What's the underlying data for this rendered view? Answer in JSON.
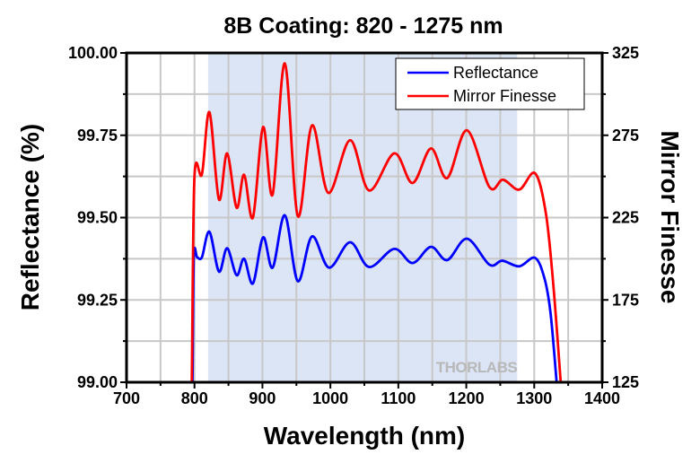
{
  "chart_data": {
    "type": "line",
    "title": "8B Coating: 820 - 1275 nm",
    "xlabel": "Wavelength (nm)",
    "ylabel": "Reflectance (%)",
    "y2label": "Mirror Finesse",
    "xlim": [
      700,
      1400
    ],
    "ylim": [
      99.0,
      100.0
    ],
    "y2lim": [
      125,
      325
    ],
    "xticks": [
      "700",
      "800",
      "900",
      "1000",
      "1100",
      "1200",
      "1300",
      "1400"
    ],
    "yticks": [
      "99.00",
      "99.25",
      "99.50",
      "99.75",
      "100.00"
    ],
    "y2ticks": [
      "125",
      "175",
      "225",
      "275",
      "325"
    ],
    "grid": true,
    "legend_position": "top-right",
    "shaded_band": [
      820,
      1275
    ],
    "shaded_color": "#dce5f5",
    "watermark": "THORLABS",
    "series": [
      {
        "name": "Reflectance",
        "axis": "left",
        "color": "#0000ff",
        "x": [
          795,
          797,
          799,
          804,
          811,
          822,
          836,
          848,
          862,
          873,
          886,
          901,
          915,
          933,
          952,
          973,
          998,
          1029,
          1057,
          1094,
          1121,
          1148,
          1172,
          1201,
          1234,
          1253,
          1278,
          1301,
          1315,
          1324,
          1333
        ],
        "y": [
          98.95,
          99.0,
          99.38,
          99.379,
          99.38,
          99.457,
          99.336,
          99.407,
          99.325,
          99.375,
          99.3,
          99.44,
          99.348,
          99.507,
          99.307,
          99.443,
          99.348,
          99.425,
          99.35,
          99.405,
          99.362,
          99.411,
          99.371,
          99.436,
          99.357,
          99.369,
          99.352,
          99.378,
          99.316,
          99.21,
          99.0
        ]
      },
      {
        "name": "Mirror Finesse",
        "axis": "right",
        "color": "#ff0000",
        "x": [
          794,
          796,
          800,
          811,
          822,
          836,
          848,
          862,
          873,
          886,
          901,
          915,
          933,
          952,
          973,
          997,
          1029,
          1057,
          1094,
          1121,
          1148,
          1172,
          1201,
          1234,
          1254,
          1278,
          1301,
          1317,
          1328,
          1339
        ],
        "y": [
          120,
          125,
          250,
          251.4,
          289,
          236,
          264,
          231,
          251,
          225,
          280,
          239,
          318.6,
          226,
          281,
          240,
          272,
          241.5,
          264,
          246,
          267,
          249,
          278,
          243.6,
          248,
          242,
          252,
          228,
          184.6,
          125
        ]
      }
    ]
  }
}
